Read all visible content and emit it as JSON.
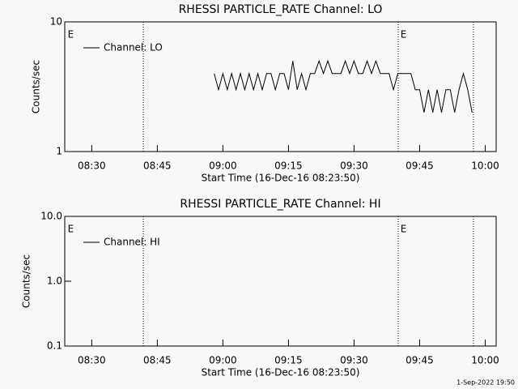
{
  "chart_data": [
    {
      "type": "line",
      "title": "RHESSI PARTICLE_RATE Channel: LO",
      "xlabel": "Start Time (16-Dec-16 08:23:50)",
      "ylabel": "Counts/sec",
      "ylog": true,
      "ylim": [
        1,
        10
      ],
      "yticks": [
        1,
        10
      ],
      "xlim": [
        503.83,
        602.5
      ],
      "xticks": [
        {
          "value": 510,
          "label": "08:30"
        },
        {
          "value": 525,
          "label": "08:45"
        },
        {
          "value": 540,
          "label": "09:00"
        },
        {
          "value": 555,
          "label": "09:15"
        },
        {
          "value": 570,
          "label": "09:30"
        },
        {
          "value": 585,
          "label": "09:45"
        },
        {
          "value": 600,
          "label": "10:00"
        }
      ],
      "legend": "top left",
      "vlines": [
        521.8,
        580.1,
        597.3
      ],
      "annotations": [
        {
          "x": 504.5,
          "text": "E"
        },
        {
          "x": 580.6,
          "text": "E"
        }
      ],
      "series": [
        {
          "name": "Channel: LO",
          "color": "#000000",
          "x": [
            538,
            539,
            540,
            541,
            542,
            543,
            544,
            545,
            546,
            547,
            548,
            549,
            550,
            551,
            552,
            553,
            554,
            555,
            556,
            557,
            558,
            559,
            560,
            561,
            562,
            563,
            564,
            565,
            566,
            567,
            568,
            569,
            570,
            571,
            572,
            573,
            574,
            575,
            576,
            577,
            578,
            579,
            580,
            581,
            582,
            583,
            584,
            585,
            586,
            587,
            588,
            589,
            590,
            591,
            592,
            593,
            594,
            595,
            596,
            597
          ],
          "values": [
            4,
            3,
            4,
            3,
            4,
            3,
            4,
            3,
            4,
            3,
            4,
            3,
            4,
            4,
            3,
            4,
            4,
            3,
            5,
            3,
            4,
            3,
            4,
            4,
            5,
            4,
            5,
            4,
            4,
            4,
            5,
            4,
            5,
            4,
            4,
            5,
            4,
            5,
            4,
            4,
            4,
            3,
            4,
            4,
            4,
            4,
            3,
            3,
            2,
            3,
            2,
            3,
            2,
            3,
            3,
            2,
            3,
            4,
            3,
            2
          ]
        }
      ]
    },
    {
      "type": "line",
      "title": "RHESSI PARTICLE_RATE Channel: HI",
      "xlabel": "Start Time (16-Dec-16 08:23:50)",
      "ylabel": "Counts/sec",
      "ylog": true,
      "ylim": [
        0.1,
        10
      ],
      "yticks": [
        0.1,
        {
          "value": 1,
          "label": "1.0"
        },
        {
          "value": 10,
          "label": "10.0"
        }
      ],
      "xlim": [
        503.83,
        602.5
      ],
      "xticks": [
        {
          "value": 510,
          "label": "08:30"
        },
        {
          "value": 525,
          "label": "08:45"
        },
        {
          "value": 540,
          "label": "09:00"
        },
        {
          "value": 555,
          "label": "09:15"
        },
        {
          "value": 570,
          "label": "09:30"
        },
        {
          "value": 585,
          "label": "09:45"
        },
        {
          "value": 600,
          "label": "10:00"
        }
      ],
      "legend": "top left",
      "vlines": [
        521.8,
        580.1,
        597.3
      ],
      "annotations": [
        {
          "x": 504.5,
          "text": "E"
        },
        {
          "x": 580.6,
          "text": "E"
        }
      ],
      "series": [
        {
          "name": "Channel: HI",
          "color": "#000000",
          "x": [],
          "values": []
        }
      ]
    }
  ],
  "footer": "1-Sep-2022 19:50"
}
